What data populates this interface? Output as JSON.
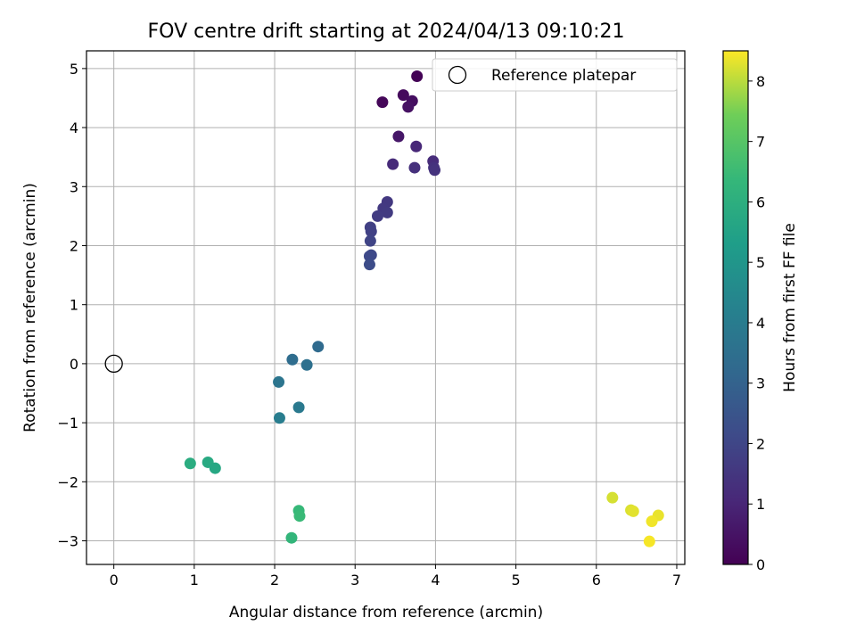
{
  "chart_data": {
    "type": "scatter",
    "title": "FOV centre drift starting at 2024/04/13 09:10:21",
    "xlabel": "Angular distance from reference (arcmin)",
    "ylabel": "Rotation from reference (arcmin)",
    "xlim": [
      -0.34,
      7.1
    ],
    "ylim": [
      -3.4,
      5.3
    ],
    "xticks": [
      "0",
      "1",
      "2",
      "3",
      "4",
      "5",
      "6",
      "7"
    ],
    "yticks": [
      "-3",
      "-2",
      "-1",
      "0",
      "1",
      "2",
      "3",
      "4",
      "5"
    ],
    "grid": true,
    "legend": {
      "placement": "top-right",
      "entries": [
        {
          "label": "Reference platepar",
          "marker": "open-circle"
        }
      ]
    },
    "reference_point": {
      "x": 0,
      "y": 0
    },
    "colorbar": {
      "label": "Hours from first FF file",
      "range": [
        0,
        8.5
      ],
      "ticks": [
        "0",
        "1",
        "2",
        "3",
        "4",
        "5",
        "6",
        "7",
        "8"
      ],
      "colormap": "viridis"
    },
    "points": [
      {
        "x": 3.77,
        "y": 4.87,
        "c": 0.05
      },
      {
        "x": 3.34,
        "y": 4.43,
        "c": 0.15
      },
      {
        "x": 3.6,
        "y": 4.55,
        "c": 0.25
      },
      {
        "x": 3.71,
        "y": 4.45,
        "c": 0.35
      },
      {
        "x": 3.66,
        "y": 4.35,
        "c": 0.45
      },
      {
        "x": 3.54,
        "y": 3.85,
        "c": 0.6
      },
      {
        "x": 3.76,
        "y": 3.68,
        "c": 1.05
      },
      {
        "x": 3.47,
        "y": 3.38,
        "c": 1.15
      },
      {
        "x": 3.97,
        "y": 3.43,
        "c": 1.2
      },
      {
        "x": 3.74,
        "y": 3.32,
        "c": 1.3
      },
      {
        "x": 3.98,
        "y": 3.32,
        "c": 1.35
      },
      {
        "x": 3.99,
        "y": 3.28,
        "c": 1.4
      },
      {
        "x": 3.4,
        "y": 2.74,
        "c": 1.55
      },
      {
        "x": 3.35,
        "y": 2.63,
        "c": 1.6
      },
      {
        "x": 3.4,
        "y": 2.56,
        "c": 1.65
      },
      {
        "x": 3.28,
        "y": 2.5,
        "c": 1.7
      },
      {
        "x": 3.19,
        "y": 2.31,
        "c": 1.8
      },
      {
        "x": 3.2,
        "y": 2.24,
        "c": 1.85
      },
      {
        "x": 3.19,
        "y": 2.08,
        "c": 1.95
      },
      {
        "x": 3.2,
        "y": 1.84,
        "c": 2.05
      },
      {
        "x": 3.18,
        "y": 1.82,
        "c": 2.1
      },
      {
        "x": 3.18,
        "y": 1.68,
        "c": 2.2
      },
      {
        "x": 2.54,
        "y": 0.29,
        "c": 3.3
      },
      {
        "x": 2.22,
        "y": 0.07,
        "c": 3.4
      },
      {
        "x": 2.4,
        "y": -0.02,
        "c": 3.5
      },
      {
        "x": 2.05,
        "y": -0.31,
        "c": 3.7
      },
      {
        "x": 2.3,
        "y": -0.74,
        "c": 3.9
      },
      {
        "x": 2.06,
        "y": -0.92,
        "c": 4.05
      },
      {
        "x": 0.95,
        "y": -1.69,
        "c": 5.9
      },
      {
        "x": 1.17,
        "y": -1.67,
        "c": 5.8
      },
      {
        "x": 1.26,
        "y": -1.77,
        "c": 5.7
      },
      {
        "x": 2.3,
        "y": -2.49,
        "c": 6.4
      },
      {
        "x": 2.31,
        "y": -2.58,
        "c": 6.45
      },
      {
        "x": 2.21,
        "y": -2.95,
        "c": 6.3
      },
      {
        "x": 6.2,
        "y": -2.27,
        "c": 8.2
      },
      {
        "x": 6.43,
        "y": -2.48,
        "c": 8.25
      },
      {
        "x": 6.46,
        "y": -2.5,
        "c": 8.3
      },
      {
        "x": 6.77,
        "y": -2.57,
        "c": 8.35
      },
      {
        "x": 6.69,
        "y": -2.67,
        "c": 8.4
      },
      {
        "x": 6.66,
        "y": -3.01,
        "c": 8.45
      }
    ]
  }
}
